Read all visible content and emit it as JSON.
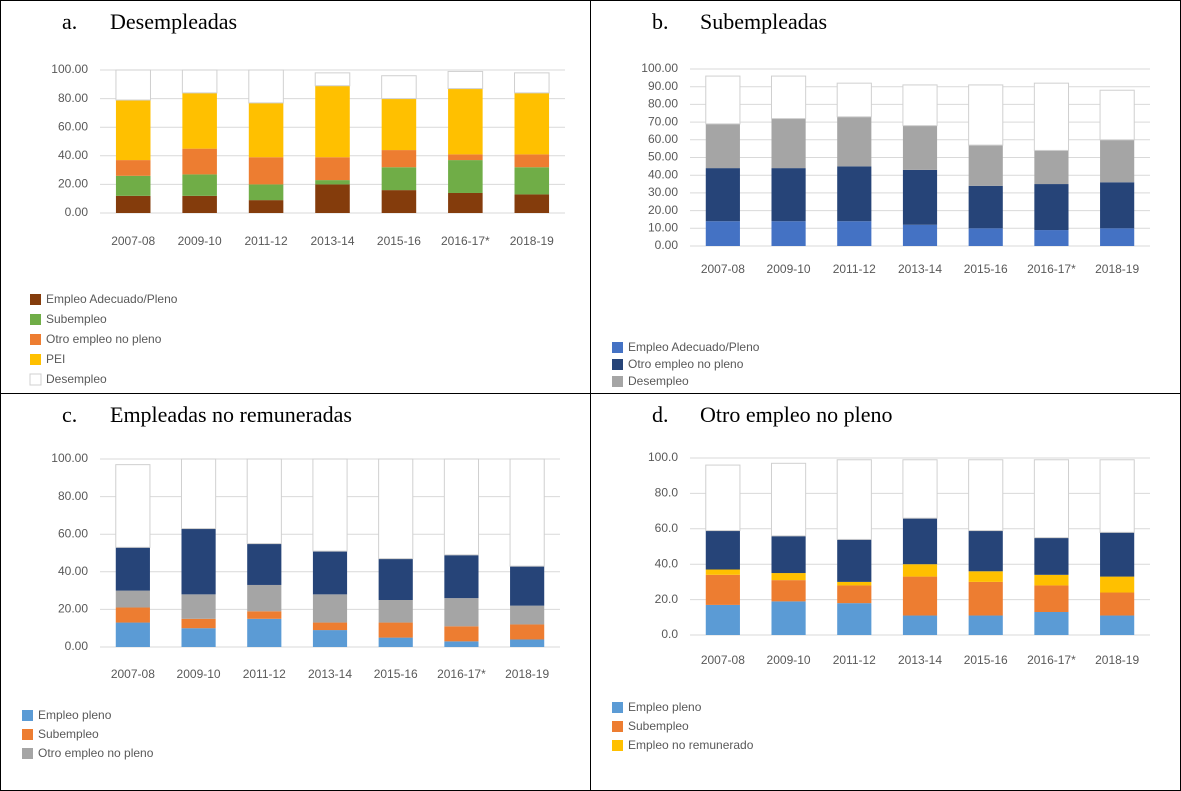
{
  "chart_data": [
    {
      "type": "stacked_bar",
      "label": "a.",
      "title": "Desempleadas",
      "categories": [
        "2007-08",
        "2009-10",
        "2011-12",
        "2013-14",
        "2015-16",
        "2016-17*",
        "2018-19"
      ],
      "ylim": [
        0,
        100
      ],
      "yticks": [
        {
          "value": 0,
          "label": "0.00"
        },
        {
          "value": 20,
          "label": "20.00"
        },
        {
          "value": 40,
          "label": "40.00"
        },
        {
          "value": 60,
          "label": "60.00"
        },
        {
          "value": 80,
          "label": "80.00"
        },
        {
          "value": 100,
          "label": "100.00"
        }
      ],
      "grid": true,
      "series": [
        {
          "name": "Empleo Adecuado/Pleno",
          "color": "#843c0c",
          "values": [
            12,
            12,
            9,
            20,
            16,
            14,
            13
          ]
        },
        {
          "name": "Subempleo",
          "color": "#70ad47",
          "values": [
            14,
            15,
            11,
            3,
            16,
            23,
            19
          ]
        },
        {
          "name": "Otro empleo no pleno",
          "color": "#ed7d31",
          "values": [
            11,
            18,
            19,
            16,
            12,
            4,
            9
          ]
        },
        {
          "name": "PEI",
          "color": "#ffc000",
          "values": [
            42,
            39,
            38,
            50,
            36,
            46,
            43
          ]
        },
        {
          "name": "Desempleo",
          "color": "#ffffff",
          "values": [
            21,
            16,
            23,
            9,
            16,
            12,
            14
          ]
        }
      ]
    },
    {
      "type": "stacked_bar",
      "label": "b.",
      "title": "Subempleadas",
      "categories": [
        "2007-08",
        "2009-10",
        "2011-12",
        "2013-14",
        "2015-16",
        "2016-17*",
        "2018-19"
      ],
      "ylim": [
        0,
        100
      ],
      "yticks": [
        {
          "value": 0,
          "label": "0.00"
        },
        {
          "value": 10,
          "label": "10.00"
        },
        {
          "value": 20,
          "label": "20.00"
        },
        {
          "value": 30,
          "label": "30.00"
        },
        {
          "value": 40,
          "label": "40.00"
        },
        {
          "value": 50,
          "label": "50.00"
        },
        {
          "value": 60,
          "label": "60.00"
        },
        {
          "value": 70,
          "label": "70.00"
        },
        {
          "value": 80,
          "label": "80.00"
        },
        {
          "value": 90,
          "label": "90.00"
        },
        {
          "value": 100,
          "label": "100.00"
        }
      ],
      "grid": true,
      "series": [
        {
          "name": "Empleo Adecuado/Pleno",
          "color": "#4472c4",
          "values": [
            14,
            14,
            14,
            12,
            10,
            9,
            10
          ]
        },
        {
          "name": "Otro empleo no pleno",
          "color": "#264478",
          "values": [
            30,
            30,
            31,
            31,
            24,
            26,
            26
          ]
        },
        {
          "name": "Desempleo",
          "color": "#a5a5a5",
          "values": [
            25,
            28,
            28,
            25,
            23,
            19,
            24
          ]
        },
        {
          "color": "#ffffff",
          "values": [
            27,
            24,
            19,
            23,
            34,
            38,
            28
          ]
        }
      ]
    },
    {
      "type": "stacked_bar",
      "label": "c.",
      "title": "Empleadas no remuneradas",
      "categories": [
        "2007-08",
        "2009-10",
        "2011-12",
        "2013-14",
        "2015-16",
        "2016-17*",
        "2018-19"
      ],
      "ylim": [
        0,
        100
      ],
      "yticks": [
        {
          "value": 0,
          "label": "0.00"
        },
        {
          "value": 20,
          "label": "20.00"
        },
        {
          "value": 40,
          "label": "40.00"
        },
        {
          "value": 60,
          "label": "60.00"
        },
        {
          "value": 80,
          "label": "80.00"
        },
        {
          "value": 100,
          "label": "100.00"
        }
      ],
      "grid": true,
      "series": [
        {
          "name": "Empleo  pleno",
          "color": "#5b9bd5",
          "values": [
            13,
            10,
            15,
            9,
            5,
            3,
            4
          ]
        },
        {
          "name": "Subempleo",
          "color": "#ed7d31",
          "values": [
            8,
            5,
            4,
            4,
            8,
            8,
            8
          ]
        },
        {
          "name": "Otro empleo no pleno",
          "color": "#a5a5a5",
          "values": [
            9,
            13,
            14,
            15,
            12,
            15,
            10
          ]
        },
        {
          "color": "#264478",
          "values": [
            23,
            35,
            22,
            23,
            22,
            23,
            21
          ]
        },
        {
          "color": "#ffffff",
          "values": [
            44,
            37,
            45,
            49,
            53,
            51,
            57
          ]
        }
      ]
    },
    {
      "type": "stacked_bar",
      "label": "d.",
      "title": "Otro empleo no pleno",
      "categories": [
        "2007-08",
        "2009-10",
        "2011-12",
        "2013-14",
        "2015-16",
        "2016-17*",
        "2018-19"
      ],
      "ylim": [
        0,
        100
      ],
      "yticks": [
        {
          "value": 0,
          "label": "0.0"
        },
        {
          "value": 20,
          "label": "20.0"
        },
        {
          "value": 40,
          "label": "40.0"
        },
        {
          "value": 60,
          "label": "60.0"
        },
        {
          "value": 80,
          "label": "80.0"
        },
        {
          "value": 100,
          "label": "100.0"
        }
      ],
      "grid": true,
      "series": [
        {
          "name": "Empleo  pleno",
          "color": "#5b9bd5",
          "values": [
            17,
            19,
            18,
            11,
            11,
            13,
            11
          ]
        },
        {
          "name": "Subempleo",
          "color": "#ed7d31",
          "values": [
            17,
            12,
            10,
            22,
            19,
            15,
            13
          ]
        },
        {
          "name": "Empleo no remunerado",
          "color": "#ffc000",
          "values": [
            3,
            4,
            2,
            7,
            6,
            6,
            9
          ]
        },
        {
          "color": "#264478",
          "values": [
            22,
            21,
            24,
            26,
            23,
            21,
            25
          ]
        },
        {
          "color": "#ffffff",
          "values": [
            37,
            41,
            45,
            33,
            40,
            44,
            41
          ]
        }
      ]
    }
  ]
}
